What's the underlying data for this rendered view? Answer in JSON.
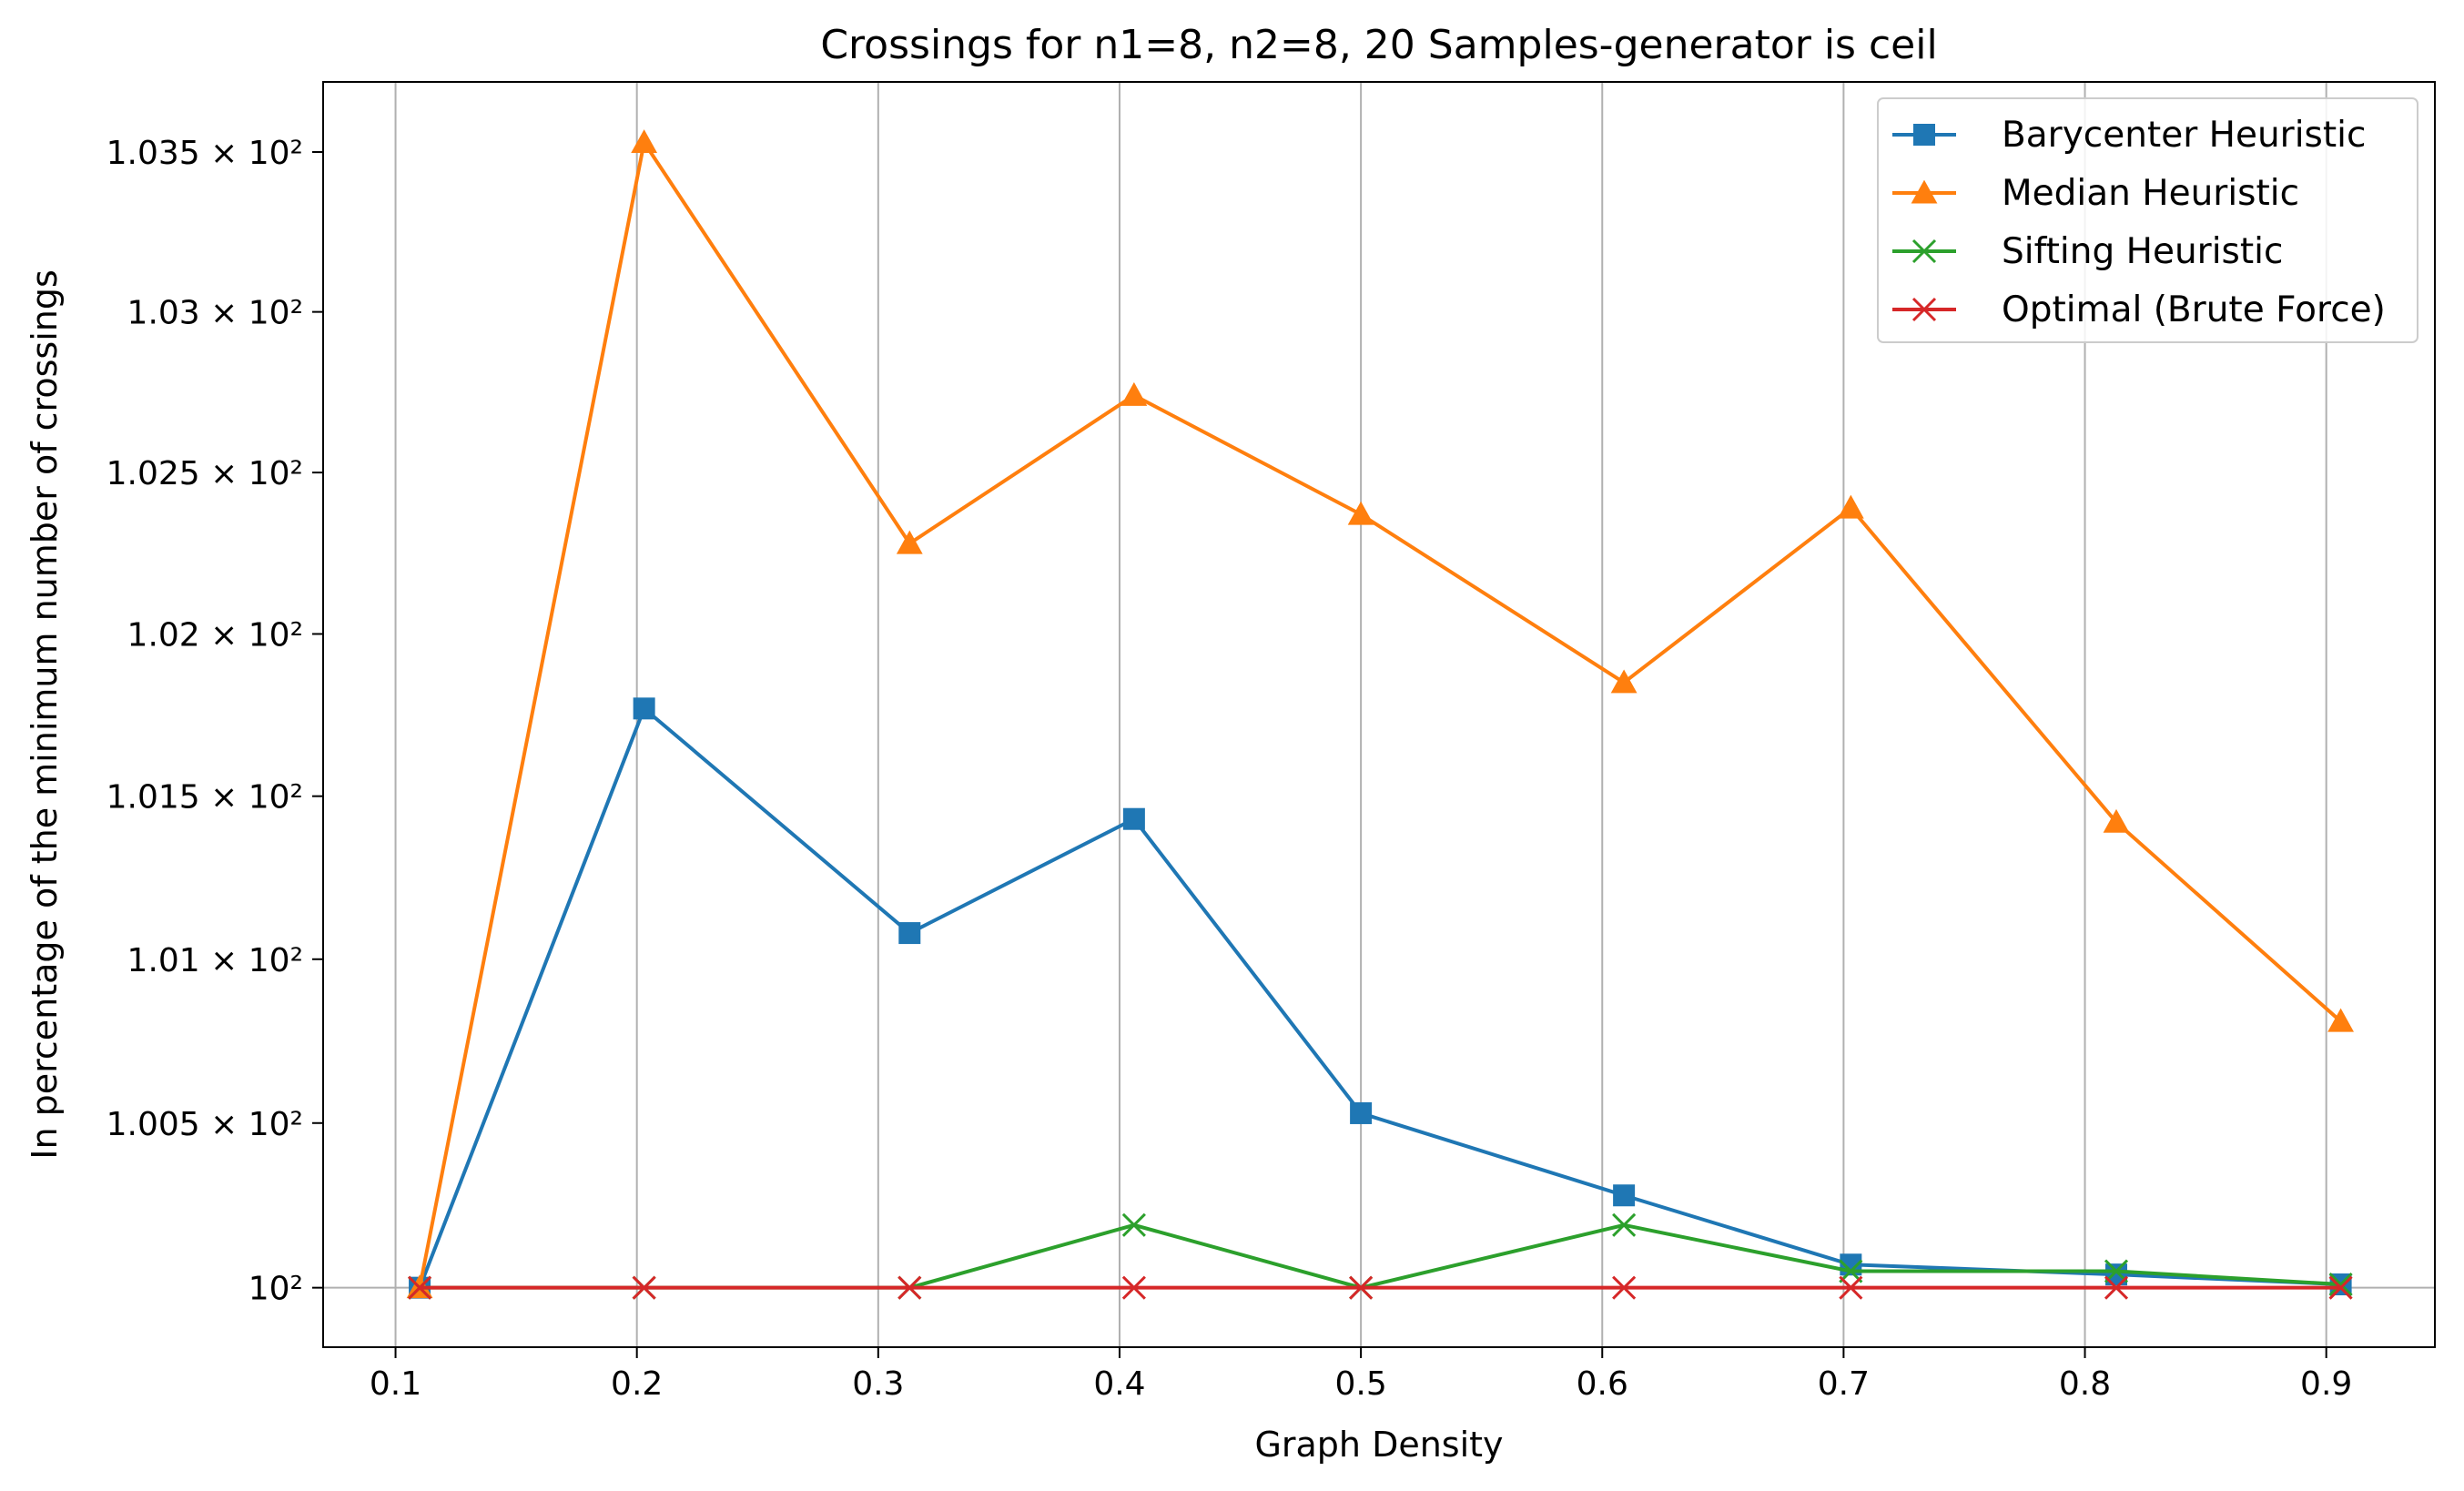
{
  "chart_data": {
    "type": "line",
    "title": "Crossings for n1=8, n2=8, 20 Samples-generator is ceil",
    "xlabel": "Graph Density",
    "ylabel": "In percentage of the minimum number of crossings",
    "xlim": [
      0.07,
      0.945
    ],
    "ylim": [
      99.82,
      103.72
    ],
    "y_scale": "log",
    "grid": "vertical lines",
    "legend_position": "top-right",
    "x_ticks": [
      "0.1",
      "0.2",
      "0.3",
      "0.4",
      "0.5",
      "0.6",
      "0.7",
      "0.8",
      "0.9"
    ],
    "y_ticks": [
      {
        "value": 100.0,
        "label": "10²"
      },
      {
        "value": 100.5,
        "label": "1.005 × 10²"
      },
      {
        "value": 101.0,
        "label": "1.01 × 10²"
      },
      {
        "value": 101.5,
        "label": "1.015 × 10²"
      },
      {
        "value": 102.0,
        "label": "1.02 × 10²"
      },
      {
        "value": 102.5,
        "label": "1.025 × 10²"
      },
      {
        "value": 103.0,
        "label": "1.03 × 10²"
      },
      {
        "value": 103.5,
        "label": "1.035 × 10²"
      }
    ],
    "x": [
      0.11,
      0.203,
      0.313,
      0.406,
      0.5,
      0.609,
      0.703,
      0.813,
      0.906
    ],
    "series": [
      {
        "name": "Barycenter Heuristic",
        "color": "#1f77b4",
        "marker": "square",
        "values": [
          100.0,
          101.77,
          101.08,
          101.43,
          100.53,
          100.28,
          100.07,
          100.04,
          100.01
        ]
      },
      {
        "name": "Median Heuristic",
        "color": "#ff7f0e",
        "marker": "triangle",
        "values": [
          100.0,
          103.53,
          102.28,
          102.74,
          102.37,
          101.85,
          102.39,
          101.42,
          100.81
        ]
      },
      {
        "name": "Sifting Heuristic",
        "color": "#2ca02c",
        "marker": "x",
        "values": [
          100.0,
          100.0,
          100.0,
          100.19,
          100.0,
          100.19,
          100.05,
          100.05,
          100.01
        ]
      },
      {
        "name": "Optimal (Brute Force)",
        "color": "#d62728",
        "marker": "x",
        "values": [
          100.0,
          100.0,
          100.0,
          100.0,
          100.0,
          100.0,
          100.0,
          100.0,
          100.0
        ]
      }
    ]
  }
}
